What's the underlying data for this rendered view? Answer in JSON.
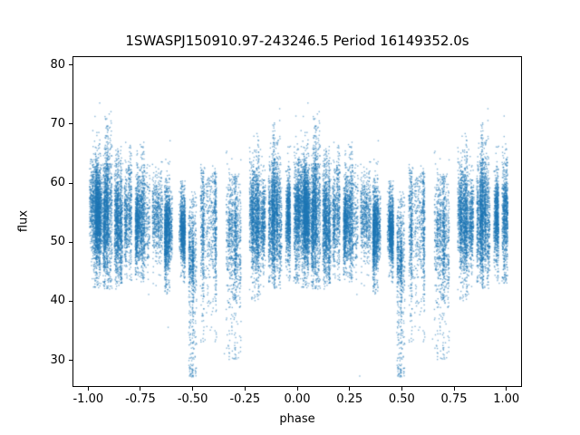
{
  "chart_data": {
    "type": "scatter",
    "title": "1SWASPJ150910.97-243246.5 Period 16149352.0s",
    "xlabel": "phase",
    "ylabel": "flux",
    "xlim": [
      -1.075,
      1.075
    ],
    "ylim": [
      25.5,
      81.5
    ],
    "xtick_values": [
      -1.0,
      -0.75,
      -0.5,
      -0.25,
      0.0,
      0.25,
      0.5,
      0.75,
      1.0
    ],
    "xtick_labels": [
      "-1.00",
      "-0.75",
      "-0.50",
      "-0.25",
      "0.00",
      "0.25",
      "0.50",
      "0.75",
      "1.00"
    ],
    "ytick_values": [
      30,
      40,
      50,
      60,
      70,
      80
    ],
    "ytick_labels": [
      "30",
      "40",
      "50",
      "60",
      "70",
      "80"
    ],
    "grid": false,
    "legend": null,
    "point_color": "#1f77b4",
    "point_alpha": 0.55,
    "marker_px": 1.4,
    "seed": 42,
    "fold_duplicate_offset": -1,
    "clusters": [
      {
        "phase": [
          0.0,
          0.14
        ],
        "stripes": 13,
        "pts": [
          180,
          520
        ],
        "mean": 55.0,
        "stripe_jitter": 2.2,
        "sigma": 4.8,
        "min": 42,
        "max": 78.5,
        "low_tail": 0.0
      },
      {
        "phase": [
          0.14,
          0.27
        ],
        "stripes": 9,
        "pts": [
          150,
          420
        ],
        "mean": 54.0,
        "stripe_jitter": 2.0,
        "sigma": 4.2,
        "min": 43,
        "max": 73.0,
        "low_tail": 0.0
      },
      {
        "phase": [
          0.27,
          0.39
        ],
        "stripes": 8,
        "pts": [
          150,
          380
        ],
        "mean": 53.0,
        "stripe_jitter": 1.8,
        "sigma": 3.6,
        "min": 41,
        "max": 68.0,
        "low_tail": 0.0
      },
      {
        "phase": [
          0.4,
          0.465
        ],
        "stripes": 5,
        "pts": [
          120,
          300
        ],
        "mean": 52.0,
        "stripe_jitter": 1.5,
        "sigma": 3.2,
        "min": 43,
        "max": 63.0,
        "low_tail": 0.0
      },
      {
        "phase": [
          0.475,
          0.525
        ],
        "stripes": 4,
        "pts": [
          150,
          350
        ],
        "mean": 49.0,
        "stripe_jitter": 2.0,
        "sigma": 5.5,
        "min": 27,
        "max": 62.0,
        "low_tail": 0.22
      },
      {
        "phase": [
          0.545,
          0.645
        ],
        "stripes": 6,
        "pts": [
          90,
          240
        ],
        "mean": 52.0,
        "stripe_jitter": 2.0,
        "sigma": 4.8,
        "min": 33,
        "max": 64.0,
        "low_tail": 0.07
      },
      {
        "phase": [
          0.65,
          0.745
        ],
        "stripes": 6,
        "pts": [
          80,
          220
        ],
        "mean": 51.0,
        "stripe_jitter": 2.2,
        "sigma": 5.2,
        "min": 30,
        "max": 66.0,
        "low_tail": 0.08
      },
      {
        "phase": [
          0.755,
          0.845
        ],
        "stripes": 7,
        "pts": [
          130,
          330
        ],
        "mean": 53.5,
        "stripe_jitter": 2.0,
        "sigma": 4.4,
        "min": 40,
        "max": 74.0,
        "low_tail": 0.0
      },
      {
        "phase": [
          0.855,
          0.94
        ],
        "stripes": 8,
        "pts": [
          150,
          400
        ],
        "mean": 55.0,
        "stripe_jitter": 2.2,
        "sigma": 4.8,
        "min": 42,
        "max": 77.0,
        "low_tail": 0.0
      },
      {
        "phase": [
          0.945,
          1.005
        ],
        "stripes": 6,
        "pts": [
          150,
          380
        ],
        "mean": 54.0,
        "stripe_jitter": 2.0,
        "sigma": 4.6,
        "min": 43,
        "max": 76.0,
        "low_tail": 0.0
      }
    ],
    "outliers": [
      [
        -0.5,
        27.3
      ],
      [
        0.5,
        27.8
      ],
      [
        0.51,
        28.5
      ],
      [
        -0.49,
        28.2
      ],
      [
        0.3,
        27.2
      ],
      [
        -0.27,
        36.5
      ],
      [
        0.73,
        34.8
      ],
      [
        -0.3,
        30.2
      ],
      [
        0.65,
        33.5
      ],
      [
        -0.35,
        31.0
      ],
      [
        0.97,
        43.0
      ],
      [
        -0.62,
        35.5
      ]
    ]
  }
}
